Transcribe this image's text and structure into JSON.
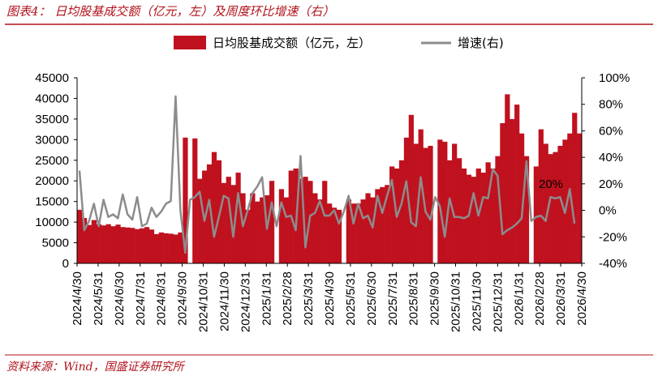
{
  "figure": {
    "caption": "图表4：  日均股基成交额（亿元，左）及周度环比增速（右）",
    "source": "资料来源：Wind，国盛证券研究所",
    "annotation": "20%"
  },
  "colors": {
    "bar": "#c0111f",
    "line": "#8c8c8c",
    "caption": "#b0121b",
    "axis": "#000000"
  },
  "chart_data": {
    "type": "bar",
    "legend_position": "top",
    "grid": false,
    "x_tick_labels": [
      "2024/4/30",
      "2024/5/31",
      "2024/6/30",
      "2024/7/31",
      "2024/8/31",
      "2024/9/30",
      "2024/10/31",
      "2024/11/30",
      "2024/12/31",
      "2025/1/31",
      "2025/2/28",
      "2025/3/31",
      "2025/4/30",
      "2025/5/31",
      "2025/6/30",
      "2025/7/31",
      "2025/8/31",
      "2025/9/30",
      "2025/10/31",
      "2025/11/30",
      "2025/12/31",
      "2026/1/31",
      "2026/2/28",
      "2026/3/31",
      "2026/4/30"
    ],
    "left_axis": {
      "ylim": [
        0,
        45000
      ],
      "ticks": [
        "0",
        "5000",
        "10000",
        "15000",
        "20000",
        "25000",
        "30000",
        "35000",
        "40000",
        "45000"
      ]
    },
    "right_axis": {
      "ylim": [
        -0.4,
        1.0
      ],
      "ticks": [
        "-40%",
        "-20%",
        "0%",
        "20%",
        "40%",
        "60%",
        "80%",
        "100%"
      ]
    },
    "series": [
      {
        "name": "日均股基成交额（亿元，左）",
        "kind": "bar",
        "values": [
          13000,
          11000,
          9300,
          10500,
          9500,
          9200,
          9500,
          9000,
          9400,
          8800,
          8700,
          8600,
          8300,
          8500,
          8800,
          8200,
          7100,
          7500,
          7300,
          7200,
          7000,
          7500,
          30500,
          0,
          30300,
          20500,
          22500,
          24000,
          27000,
          25000,
          19500,
          21000,
          19000,
          22000,
          17000,
          13000,
          17000,
          15000,
          16000,
          16500,
          20000,
          0,
          18000,
          16000,
          22500,
          23000,
          20500,
          21000,
          20000,
          17000,
          15500,
          20000,
          14500,
          13500,
          13000,
          0,
          15500,
          14500,
          14500,
          15500,
          17000,
          16000,
          18000,
          18500,
          19000,
          23500,
          23000,
          25000,
          30500,
          36000,
          29000,
          32500,
          28000,
          28500,
          0,
          30000,
          29500,
          25000,
          29000,
          25500,
          23000,
          21500,
          21000,
          23000,
          22000,
          24500,
          23000,
          26000,
          34000,
          41000,
          35000,
          38500,
          31500,
          26000,
          0,
          23500,
          32500,
          29000,
          26500,
          27000,
          28500,
          30000,
          31500,
          36500,
          31500
        ],
        "gaps": [
          23,
          41,
          55,
          74,
          94
        ]
      },
      {
        "name": "增速(右)",
        "kind": "line",
        "values": [
          0.3,
          -0.15,
          -0.08,
          0.05,
          -0.12,
          0.08,
          -0.05,
          -0.03,
          -0.06,
          0.12,
          -0.03,
          -0.07,
          0.1,
          -0.12,
          -0.1,
          0.02,
          -0.05,
          -0.01,
          0.05,
          0.07,
          0.86,
          0.0,
          -0.32,
          0.08,
          0.1,
          0.14,
          -0.08,
          0.08,
          -0.2,
          -0.05,
          0.11,
          0.09,
          -0.2,
          0.13,
          -0.12,
          0.0,
          0.13,
          0.18,
          0.25,
          -0.14,
          0.06,
          -0.12,
          0.06,
          -0.05,
          -0.04,
          -0.15,
          0.41,
          -0.28,
          -0.04,
          -0.02,
          0.07,
          -0.04,
          -0.04,
          0.0,
          -0.1,
          -0.01,
          0.11,
          -0.1,
          0.05,
          -0.06,
          -0.04,
          -0.13,
          0.11,
          -0.02,
          0.11,
          0.23,
          -0.05,
          0.05,
          0.22,
          -0.09,
          -0.12,
          0.25,
          -0.01,
          -0.07,
          0.1,
          0.03,
          -0.2,
          0.09,
          -0.05,
          -0.05,
          -0.06,
          -0.04,
          0.13,
          -0.04,
          0.1,
          0.09,
          0.31,
          0.26,
          -0.18,
          -0.15,
          -0.13,
          -0.1,
          -0.06,
          0.37,
          -0.08,
          -0.05,
          -0.04,
          -0.08,
          0.1,
          0.09,
          0.1,
          -0.02,
          0.16,
          -0.1
        ]
      }
    ]
  }
}
